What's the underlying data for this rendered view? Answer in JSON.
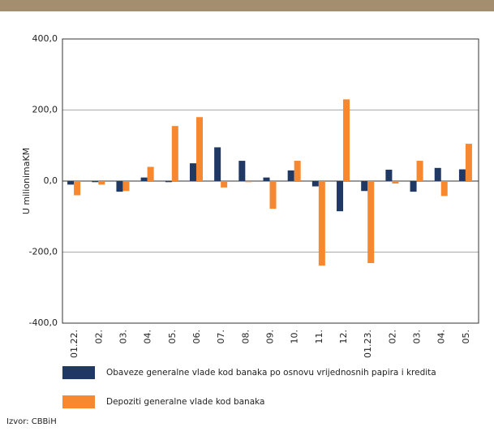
{
  "chart_data": {
    "type": "bar",
    "y_label": "U milionimaKM",
    "categories": [
      "01.22.",
      "02.",
      "03.",
      "04.",
      "05.",
      "06.",
      "07.",
      "08.",
      "09.",
      "10.",
      "11.",
      "12.",
      "01.23.",
      "02.",
      "03.",
      "04.",
      "05."
    ],
    "series": [
      {
        "name": "Obaveze generalne vlade kod banaka po osnovu vrijednosnih papira i kredita",
        "color": "#1f3864",
        "values": [
          -10,
          -3,
          -30,
          10,
          -3,
          50,
          95,
          57,
          10,
          30,
          -15,
          -85,
          -28,
          32,
          -30,
          37,
          33
        ]
      },
      {
        "name": "Depoziti generalne vlade kod banaka",
        "color": "#f7882f",
        "values": [
          -40,
          -10,
          -28,
          40,
          155,
          180,
          -18,
          -3,
          -78,
          57,
          -238,
          230,
          -231,
          -7,
          57,
          -42,
          105
        ]
      }
    ],
    "ylim": [
      -400,
      400
    ],
    "yticks": [
      {
        "value": -400,
        "label": "-400,0"
      },
      {
        "value": -200,
        "label": "-200,0"
      },
      {
        "value": 0,
        "label": "0,0"
      },
      {
        "value": 200,
        "label": "200,0"
      },
      {
        "value": 400,
        "label": "400,0"
      }
    ],
    "grid": true,
    "source": "Izvor: CBBiH"
  }
}
